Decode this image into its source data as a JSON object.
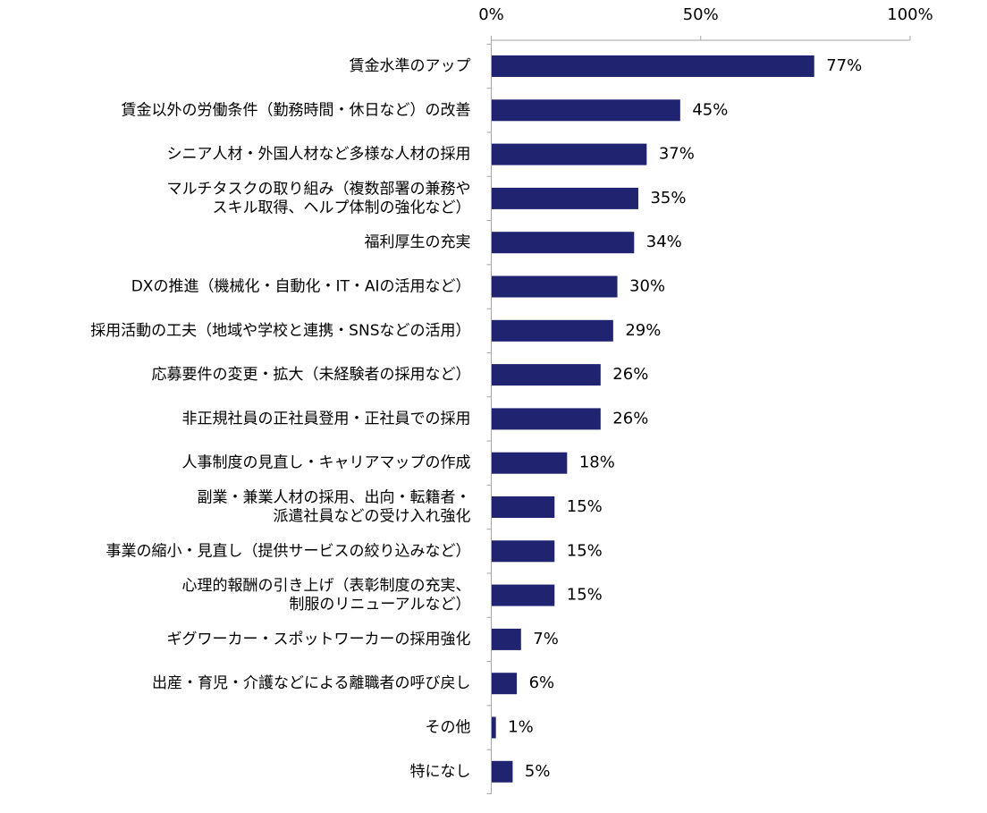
{
  "chart_data": {
    "type": "bar",
    "orientation": "horizontal",
    "categories": [
      [
        "賃金水準のアップ"
      ],
      [
        "賃金以外の労働条件（勤務時間・休日など）の改善"
      ],
      [
        "シニア人材・外国人材など多様な人材の採用"
      ],
      [
        "マルチタスクの取り組み（複数部署の兼務や",
        "スキル取得、ヘルプ体制の強化など）"
      ],
      [
        "福利厚生の充実"
      ],
      [
        "DXの推進（機械化・自動化・IT・AIの活用など）"
      ],
      [
        "採用活動の工夫（地域や学校と連携・SNSなどの活用）"
      ],
      [
        "応募要件の変更・拡大（未経験者の採用など）"
      ],
      [
        "非正規社員の正社員登用・正社員での採用"
      ],
      [
        "人事制度の見直し・キャリアマップの作成"
      ],
      [
        "副業・兼業人材の採用、出向・転籍者・",
        "派遣社員などの受け入れ強化"
      ],
      [
        "事業の縮小・見直し（提供サービスの絞り込みなど）"
      ],
      [
        "心理的報酬の引き上げ（表彰制度の充実、",
        "制服のリニューアルなど）"
      ],
      [
        "ギグワーカー・スポットワーカーの採用強化"
      ],
      [
        "出産・育児・介護などによる離職者の呼び戻し"
      ],
      [
        "その他"
      ],
      [
        "特になし"
      ]
    ],
    "values": [
      77,
      45,
      37,
      35,
      34,
      30,
      29,
      26,
      26,
      18,
      15,
      15,
      15,
      7,
      6,
      1,
      5
    ],
    "value_labels": [
      "77%",
      "45%",
      "37%",
      "35%",
      "34%",
      "30%",
      "29%",
      "26%",
      "26%",
      "18%",
      "15%",
      "15%",
      "15%",
      "7%",
      "6%",
      "1%",
      "5%"
    ],
    "xlim": [
      0,
      100
    ],
    "x_ticks": [
      0,
      50,
      100
    ],
    "x_tick_labels": [
      "0%",
      "50%",
      "100%"
    ],
    "x_axis_position": "top",
    "grid": false,
    "legend": "none",
    "bar_color": "#1f2370"
  }
}
